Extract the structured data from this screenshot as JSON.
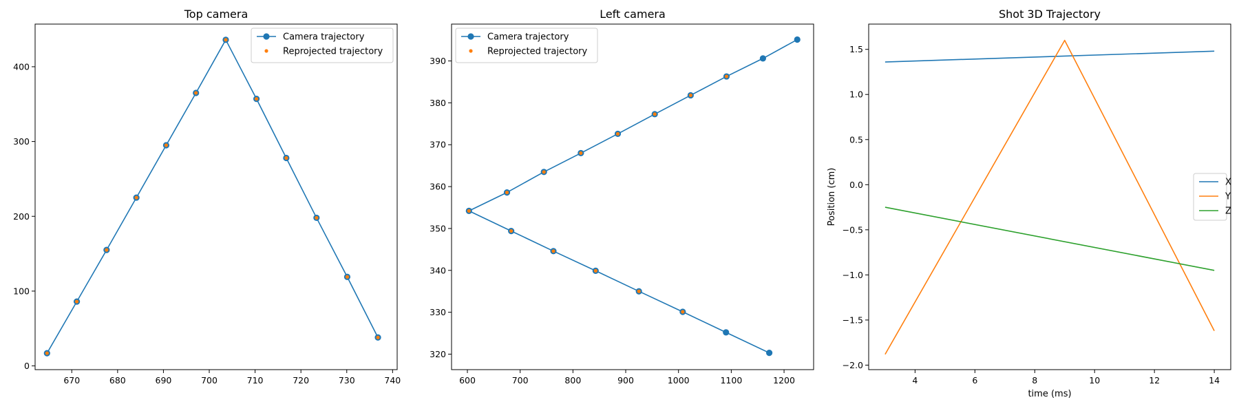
{
  "chart_data": [
    {
      "type": "line",
      "title": "Top camera",
      "xlabel": "",
      "ylabel": "",
      "xlim": [
        662,
        741
      ],
      "ylim": [
        -5,
        457
      ],
      "xticks": [
        670,
        680,
        690,
        700,
        710,
        720,
        730,
        740
      ],
      "yticks": [
        0,
        100,
        200,
        300,
        400
      ],
      "legend_position": "upper right",
      "series": [
        {
          "name": "Camera trajectory",
          "color": "#1f77b4",
          "marker": "circle",
          "line": true,
          "x": [
            664.6,
            671.1,
            677.6,
            684.1,
            690.6,
            697.1,
            703.6,
            710.3,
            716.8,
            723.4,
            730.1,
            736.8
          ],
          "y": [
            17,
            86,
            155,
            225,
            295,
            365,
            436,
            357,
            278,
            198,
            119,
            38
          ]
        },
        {
          "name": "Reprojected trajectory",
          "color": "#ff7f0e",
          "marker": "dot",
          "line": false,
          "x": [
            664.6,
            671.1,
            677.6,
            684.1,
            690.6,
            697.1,
            703.6,
            710.3,
            716.8,
            723.4,
            730.1,
            736.8
          ],
          "y": [
            17,
            86,
            155,
            225,
            295,
            365,
            436,
            357,
            278,
            198,
            119,
            38
          ]
        }
      ]
    },
    {
      "type": "line",
      "title": "Left camera",
      "xlabel": "",
      "ylabel": "",
      "xlim": [
        570,
        1256
      ],
      "ylim": [
        316.3,
        398.8
      ],
      "xticks": [
        600,
        700,
        800,
        900,
        1000,
        1100,
        1200
      ],
      "yticks": [
        320,
        330,
        340,
        350,
        360,
        370,
        380,
        390
      ],
      "legend_position": "upper left",
      "series": [
        {
          "name": "Camera trajectory",
          "color": "#1f77b4",
          "marker": "circle",
          "line": true,
          "x": [
            1225,
            1160,
            1091,
            1023,
            955,
            885,
            815,
            745,
            675,
            603,
            683,
            763,
            843,
            925,
            1008,
            1090,
            1172
          ],
          "y": [
            395.1,
            390.6,
            386.3,
            381.8,
            377.3,
            372.6,
            368.0,
            363.5,
            358.6,
            354.2,
            349.4,
            344.6,
            339.9,
            335.0,
            330.1,
            325.2,
            320.3
          ]
        },
        {
          "name": "Reprojected trajectory",
          "color": "#ff7f0e",
          "marker": "dot",
          "line": false,
          "x": [
            1091,
            1023,
            955,
            885,
            815,
            745,
            675,
            603,
            683,
            763,
            843,
            925,
            1008
          ],
          "y": [
            386.3,
            381.8,
            377.3,
            372.6,
            368.0,
            363.5,
            358.6,
            354.2,
            349.4,
            344.6,
            339.9,
            335.0,
            330.1
          ]
        }
      ]
    },
    {
      "type": "line",
      "title": "Shot 3D Trajectory",
      "xlabel": "time (ms)",
      "ylabel": "Position (cm)",
      "xlim": [
        2.45,
        14.55
      ],
      "ylim": [
        -2.05,
        1.78
      ],
      "xticks": [
        4,
        6,
        8,
        10,
        12,
        14
      ],
      "yticks": [
        -2.0,
        -1.5,
        -1.0,
        -0.5,
        0.0,
        0.5,
        1.0,
        1.5
      ],
      "ytick_labels": [
        "−2.0",
        "−1.5",
        "−1.0",
        "−0.5",
        "0.0",
        "0.5",
        "1.0",
        "1.5"
      ],
      "legend_position": "center right",
      "series": [
        {
          "name": "X",
          "color": "#1f77b4",
          "marker": "none",
          "line": true,
          "x": [
            3,
            14
          ],
          "y": [
            1.36,
            1.48
          ]
        },
        {
          "name": "Y",
          "color": "#ff7f0e",
          "marker": "none",
          "line": true,
          "x": [
            3,
            9,
            14
          ],
          "y": [
            -1.88,
            1.6,
            -1.62
          ]
        },
        {
          "name": "Z",
          "color": "#2ca02c",
          "marker": "none",
          "line": true,
          "x": [
            3,
            14
          ],
          "y": [
            -0.25,
            -0.95
          ]
        }
      ]
    }
  ]
}
